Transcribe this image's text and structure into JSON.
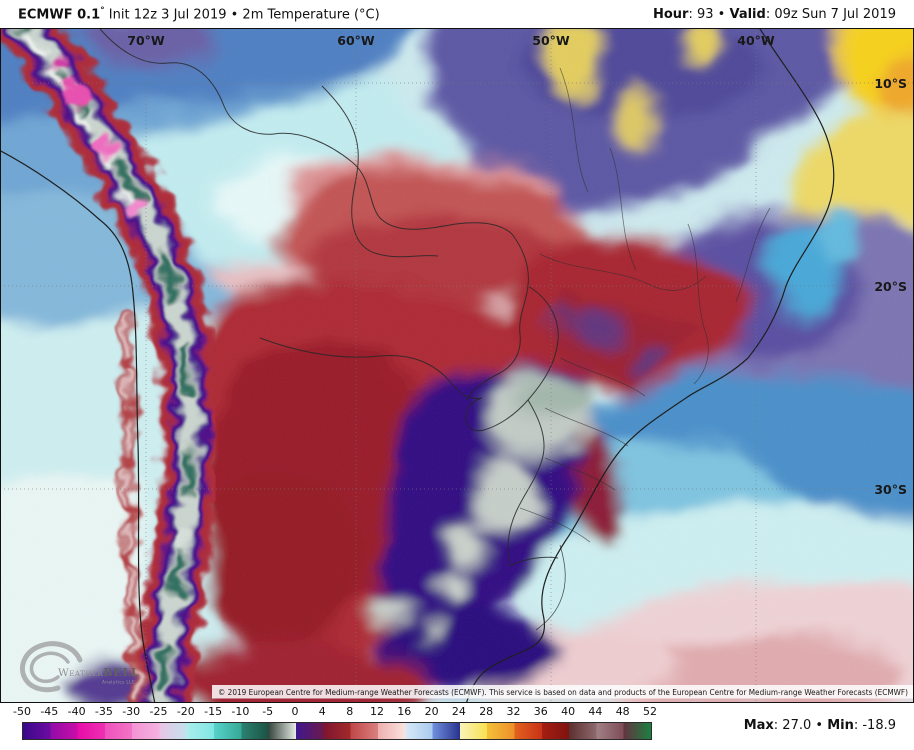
{
  "header": {
    "left_bold": "ECMWF 0.1",
    "left_degree": "°",
    "left_rest": " Init 12z 3 Jul 2019 • 2m Temperature (°C)",
    "hour_label": "Hour",
    "hour_value": ": 93 • ",
    "valid_label": "Valid",
    "valid_value": ": 09z Sun 7 Jul 2019"
  },
  "map": {
    "lon_labels": [
      "70°W",
      "60°W",
      "50°W",
      "40°W"
    ],
    "lat_labels": [
      "10°S",
      "20°S",
      "30°S"
    ],
    "copyright": "© 2019 European Centre for Medium-range Weather Forecasts (ECMWF). This service is based on data and products of the European Centre for Medium-range Weather Forecasts (ECMWF)",
    "logo": {
      "word1": "Weather",
      "word2": "BELL",
      "sub": "Analytics LLC"
    }
  },
  "colorbar": {
    "units": "°C",
    "ticks": [
      "-50",
      "-45",
      "-40",
      "-35",
      "-30",
      "-25",
      "-20",
      "-15",
      "-10",
      "-5",
      "0",
      "4",
      "8",
      "12",
      "16",
      "20",
      "24",
      "28",
      "32",
      "36",
      "40",
      "44",
      "48",
      "52"
    ],
    "segments": [
      [
        "#37098a",
        "#6e0ba2"
      ],
      [
        "#920ca8",
        "#c90da8"
      ],
      [
        "#e70ca8",
        "#ee30b2"
      ],
      [
        "#f051bc",
        "#f274c6"
      ],
      [
        "#f394d4",
        "#f5b2e0"
      ],
      [
        "#e9c4e8",
        "#c2e2ec"
      ],
      [
        "#abeeee",
        "#7fe6e2"
      ],
      [
        "#57d2ca",
        "#36a896"
      ],
      [
        "#2b8272",
        "#1b5244"
      ],
      [
        "#37463e",
        "#e7ece6"
      ],
      [
        "#3f178f",
        "#6b1a4e"
      ],
      [
        "#7e1430",
        "#a32a2a"
      ],
      [
        "#bf4747",
        "#db8080"
      ],
      [
        "#eeafaf",
        "#fae3df"
      ],
      [
        "#d9e9f7",
        "#a8caef"
      ],
      [
        "#7090de",
        "#28338f"
      ],
      [
        "#f9f3ba",
        "#f8e251"
      ],
      [
        "#f4c139",
        "#ed8e29"
      ],
      [
        "#e3621d",
        "#c83418"
      ],
      [
        "#a51e13",
        "#7f130f"
      ],
      [
        "#5d3030",
        "#8d696d"
      ],
      [
        "#a28086",
        "#7e4c57"
      ],
      [
        "#643340",
        "#1c8040"
      ]
    ]
  },
  "footer": {
    "max_label": "Max",
    "max_value": ": 27.0 • ",
    "min_label": "Min",
    "min_value": ": -18.9"
  }
}
